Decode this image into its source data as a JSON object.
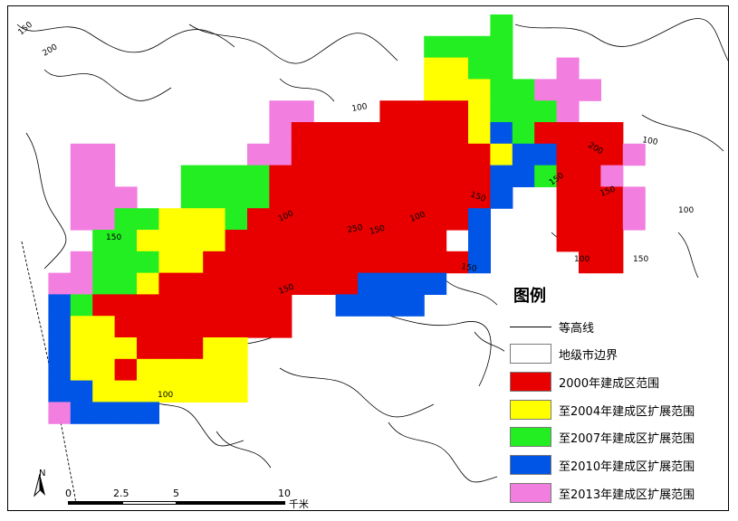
{
  "legend": {
    "title": "图例",
    "items": [
      {
        "label": "等高线",
        "kind": "line"
      },
      {
        "label": "地级市边界",
        "kind": "outline"
      },
      {
        "label": "2000年建成区范围",
        "kind": "fill",
        "color": "#e80000"
      },
      {
        "label": "至2004年建成区扩展范围",
        "kind": "fill",
        "color": "#ffff00"
      },
      {
        "label": "至2007年建成区扩展范围",
        "kind": "fill",
        "color": "#22ee22"
      },
      {
        "label": "至2010年建成区扩展范围",
        "kind": "fill",
        "color": "#0055e6"
      },
      {
        "label": "至2013年建成区扩展范围",
        "kind": "fill",
        "color": "#f27ee0"
      }
    ]
  },
  "north": {
    "label": "N"
  },
  "scale": {
    "ticks": [
      "0",
      "2.5",
      "5",
      "10"
    ],
    "unit": "千米",
    "values": [
      0,
      2.5,
      5,
      10
    ]
  },
  "contour_labels": [
    "150",
    "200",
    "150",
    "100",
    "150",
    "100",
    "250",
    "150",
    "100",
    "150",
    "200",
    "150",
    "150",
    "100",
    "100",
    "150",
    "100",
    "150",
    "100"
  ],
  "colors": {
    "y2000": "#e80000",
    "y2004": "#ffff00",
    "y2007": "#22ee22",
    "y2010": "#0055e6",
    "y2013": "#f27ee0"
  }
}
